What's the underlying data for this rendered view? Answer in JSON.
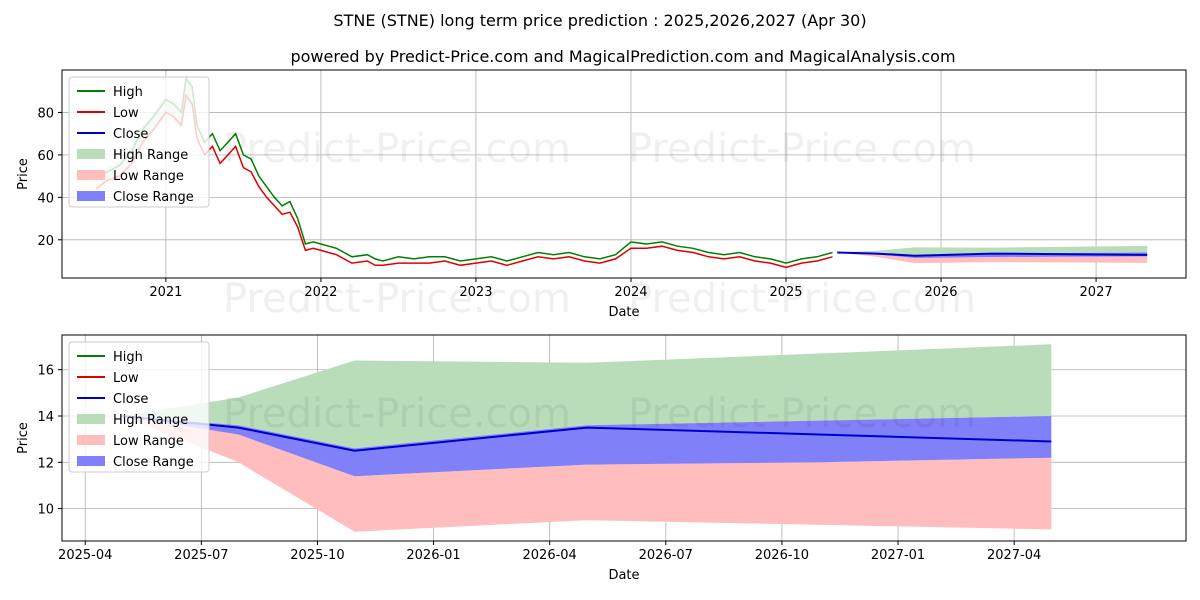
{
  "title": "STNE (STNE) long term price prediction : 2025,2026,2027 (Apr 30)",
  "subtitle": "powered by Predict-Price.com and MagicalPrediction.com and MagicalAnalysis.com",
  "watermark": "Predict-Price.com",
  "colors": {
    "high": "#008000",
    "low": "#e00000",
    "close": "#0000cc",
    "high_range": "#b9dcb9",
    "low_range": "#ffbdbd",
    "close_range": "#8080f8",
    "grid": "#b0b0b0"
  },
  "chart_data": [
    {
      "type": "line",
      "name": "top-history",
      "xlabel": "Date",
      "ylabel": "Price",
      "xlim": [
        2020.33,
        2027.58
      ],
      "ylim": [
        2,
        100
      ],
      "xticks": [
        2021,
        2022,
        2023,
        2024,
        2025,
        2026,
        2027
      ],
      "xtick_labels": [
        "2021",
        "2022",
        "2023",
        "2024",
        "2025",
        "2026",
        "2027"
      ],
      "yticks": [
        20,
        40,
        60,
        80
      ],
      "ytick_labels": [
        "20",
        "40",
        "60",
        "80"
      ],
      "grid": true,
      "legend": {
        "position": "top-left",
        "entries": [
          "High",
          "Low",
          "Close",
          "High Range",
          "Low Range",
          "Close Range"
        ]
      },
      "history": {
        "x": [
          2020.55,
          2020.62,
          2020.7,
          2020.78,
          2020.85,
          2020.92,
          2021.0,
          2021.05,
          2021.1,
          2021.13,
          2021.17,
          2021.2,
          2021.25,
          2021.3,
          2021.35,
          2021.4,
          2021.45,
          2021.5,
          2021.55,
          2021.6,
          2021.65,
          2021.7,
          2021.75,
          2021.8,
          2021.85,
          2021.9,
          2021.95,
          2022.0,
          2022.1,
          2022.2,
          2022.3,
          2022.35,
          2022.4,
          2022.5,
          2022.6,
          2022.7,
          2022.8,
          2022.9,
          2023.0,
          2023.1,
          2023.2,
          2023.3,
          2023.4,
          2023.5,
          2023.6,
          2023.7,
          2023.8,
          2023.9,
          2024.0,
          2024.1,
          2024.2,
          2024.3,
          2024.4,
          2024.5,
          2024.6,
          2024.7,
          2024.8,
          2024.9,
          2025.0,
          2025.1,
          2025.2,
          2025.3
        ],
        "high": [
          48,
          52,
          55,
          62,
          72,
          78,
          86,
          84,
          80,
          96,
          92,
          74,
          66,
          70,
          62,
          66,
          70,
          60,
          58,
          50,
          45,
          40,
          36,
          38,
          30,
          18,
          19,
          18,
          16,
          12,
          13,
          11,
          10,
          12,
          11,
          12,
          12,
          10,
          11,
          12,
          10,
          12,
          14,
          13,
          14,
          12,
          11,
          13,
          19,
          18,
          19,
          17,
          16,
          14,
          13,
          14,
          12,
          11,
          9,
          11,
          12,
          14
        ],
        "low": [
          44,
          48,
          50,
          56,
          66,
          72,
          80,
          78,
          74,
          88,
          84,
          68,
          60,
          64,
          56,
          60,
          64,
          54,
          52,
          45,
          40,
          36,
          32,
          33,
          26,
          15,
          16,
          15,
          13,
          9,
          10,
          8,
          8,
          9,
          9,
          9,
          10,
          8,
          9,
          10,
          8,
          10,
          12,
          11,
          12,
          10,
          9,
          11,
          16,
          16,
          17,
          15,
          14,
          12,
          11,
          12,
          10,
          9,
          7,
          9,
          10,
          12
        ]
      },
      "forecast": {
        "x": [
          2025.33,
          2025.58,
          2025.83,
          2026.33,
          2026.83,
          2027.33
        ],
        "close": [
          14.0,
          13.5,
          12.5,
          13.5,
          13.2,
          12.9
        ],
        "high_range": [
          14.0,
          14.8,
          16.4,
          16.3,
          16.7,
          17.1
        ],
        "low_range": [
          14.0,
          12.0,
          9.0,
          9.5,
          9.3,
          9.1
        ],
        "close_range_upper": [
          14.0,
          13.6,
          12.6,
          13.6,
          13.8,
          14.0
        ],
        "close_range_lower": [
          14.0,
          13.2,
          11.4,
          11.9,
          12.0,
          12.2
        ]
      }
    },
    {
      "type": "area",
      "name": "bottom-forecast",
      "xlabel": "Date",
      "ylabel": "Price",
      "xlim": [
        2025.2,
        2027.62
      ],
      "ylim": [
        8.6,
        17.5
      ],
      "xticks": [
        2025.25,
        2025.5,
        2025.75,
        2026.0,
        2026.25,
        2026.5,
        2026.75,
        2027.0,
        2027.25
      ],
      "xtick_labels": [
        "2025-04",
        "2025-07",
        "2025-10",
        "2026-01",
        "2026-04",
        "2026-07",
        "2026-10",
        "2027-01",
        "2027-04"
      ],
      "yticks": [
        10,
        12,
        14,
        16
      ],
      "ytick_labels": [
        "10",
        "12",
        "14",
        "16"
      ],
      "grid": true,
      "legend": {
        "position": "top-left",
        "entries": [
          "High",
          "Low",
          "Close",
          "High Range",
          "Low Range",
          "Close Range"
        ]
      },
      "x": [
        2025.33,
        2025.58,
        2025.83,
        2026.33,
        2026.83,
        2027.33
      ],
      "close": [
        14.0,
        13.5,
        12.5,
        13.5,
        13.2,
        12.9
      ],
      "high_range": [
        14.0,
        14.8,
        16.4,
        16.3,
        16.7,
        17.1
      ],
      "low_range": [
        14.0,
        12.0,
        9.0,
        9.5,
        9.3,
        9.1
      ],
      "close_range_upper": [
        14.0,
        13.6,
        12.6,
        13.6,
        13.8,
        14.0
      ],
      "close_range_lower": [
        14.0,
        13.2,
        11.4,
        11.9,
        12.0,
        12.2
      ]
    }
  ]
}
